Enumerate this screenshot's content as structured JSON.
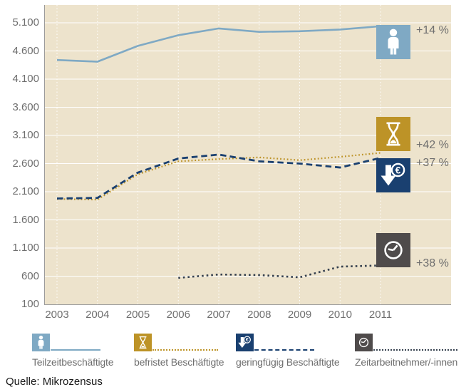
{
  "chart_data": {
    "type": "line",
    "title": "",
    "categories": [
      "2003",
      "2004",
      "2005",
      "2006",
      "2007",
      "2008",
      "2009",
      "2010",
      "2011"
    ],
    "y_ticks": [
      100,
      600,
      1100,
      1600,
      2100,
      2600,
      3100,
      3600,
      4100,
      4600,
      5100
    ],
    "y_tick_labels": [
      "100",
      "600",
      "1.100",
      "1.600",
      "2.100",
      "2.600",
      "3.100",
      "3.600",
      "4.100",
      "4.600",
      "5.100"
    ],
    "ylim": [
      100,
      5400
    ],
    "xlabel": "",
    "ylabel": "",
    "grid": true,
    "legend_position": "bottom",
    "series": [
      {
        "name": "Teilzeitbeschäftigte",
        "color": "#7FA9C4",
        "line_style": "solid",
        "stroke_width": 2.6,
        "change_label": "+14 %",
        "values": [
          4440,
          4410,
          4690,
          4880,
          5000,
          4940,
          4950,
          4980,
          5040
        ]
      },
      {
        "name": "befristet Beschäftigte",
        "color": "#BD9327",
        "line_style": "fine-dotted",
        "stroke_width": 2.2,
        "change_label": "+42 %",
        "values": [
          1970,
          1960,
          2410,
          2640,
          2680,
          2710,
          2660,
          2720,
          2790
        ]
      },
      {
        "name": "geringfügig Beschäftigte",
        "color": "#1A4070",
        "line_style": "dashed",
        "stroke_width": 2.8,
        "change_label": "+37 %",
        "values": [
          1980,
          1990,
          2440,
          2690,
          2760,
          2640,
          2600,
          2530,
          2700
        ]
      },
      {
        "name": "Zeitarbeitnehmer/-innen",
        "color": "#35404E",
        "line_style": "dotted",
        "stroke_width": 2.6,
        "change_label": "+38 %",
        "values": [
          null,
          null,
          null,
          570,
          630,
          620,
          580,
          770,
          790
        ]
      }
    ]
  },
  "icons": [
    {
      "name": "person",
      "bg": "#7FA9C4",
      "percent": "+14 %"
    },
    {
      "name": "hourglass",
      "bg": "#BD9327",
      "percent": "+42 %"
    },
    {
      "name": "euro-down",
      "bg": "#1A4070",
      "percent": "+37 %"
    },
    {
      "name": "clock",
      "bg": "#4F4B4B",
      "percent": "+38 %"
    }
  ],
  "legend": [
    {
      "label": "Teilzeitbeschäftigte",
      "icon": "person",
      "icon_bg": "#7FA9C4",
      "line_color": "#7FA9C4",
      "line_style": "solid"
    },
    {
      "label": "befristet Beschäftigte",
      "icon": "hourglass",
      "icon_bg": "#BD9327",
      "line_color": "#BD9327",
      "line_style": "fine-dotted"
    },
    {
      "label": "geringfügig Beschäftigte",
      "icon": "euro-down",
      "icon_bg": "#1A4070",
      "line_color": "#1A4070",
      "line_style": "dashed"
    },
    {
      "label": "Zeitarbeitnehmer/-innen",
      "icon": "clock",
      "icon_bg": "#4F4B4B",
      "line_color": "#35404E",
      "line_style": "dotted"
    }
  ],
  "source": "Quelle: Mikrozensus",
  "colors": {
    "plot_bg": "#EDE3CC",
    "grid": "#FFFFFF",
    "axis": "#9B9B9B",
    "tick_text": "#6F6F6F",
    "source_text": "#1A1A1A"
  }
}
